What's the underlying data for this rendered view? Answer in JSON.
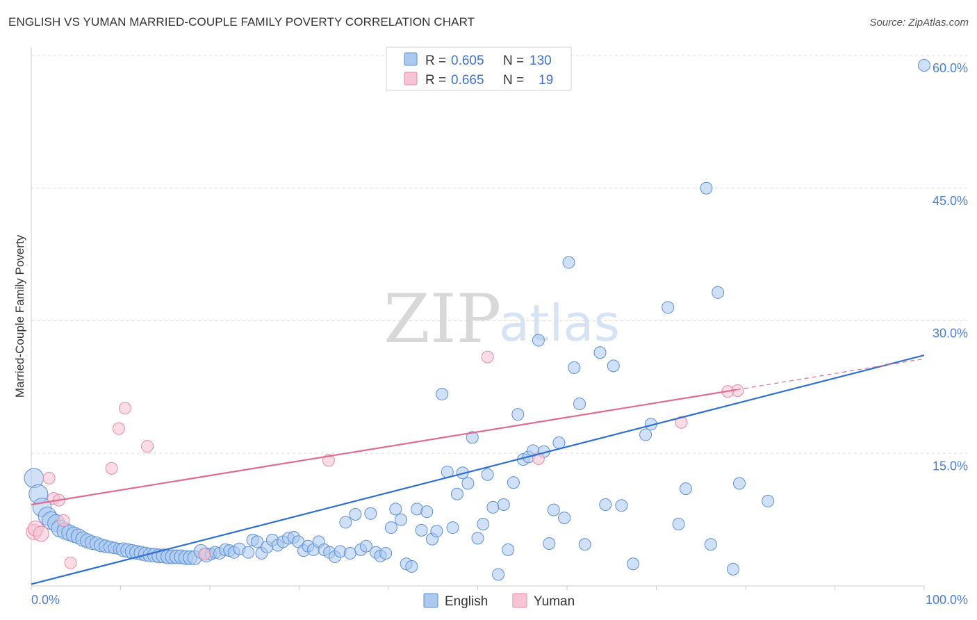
{
  "title": "ENGLISH VS YUMAN MARRIED-COUPLE FAMILY POVERTY CORRELATION CHART",
  "source": "Source: ZipAtlas.com",
  "watermark": {
    "zip": "ZIP",
    "atlas": "atlas"
  },
  "colors": {
    "english_fill": "#aac8f0",
    "english_stroke": "#5b8fd6",
    "english_line": "#2f6fcf",
    "yuman_fill": "#f6c4d4",
    "yuman_stroke": "#e68aa8",
    "yuman_line": "#e06a92"
  },
  "legend": {
    "rows": [
      {
        "r_label": "R =",
        "r_value": "0.605",
        "n_label": "N =",
        "n_value": "130"
      },
      {
        "r_label": "R =",
        "r_value": "0.665",
        "n_label": "N =",
        "n_value": "19"
      }
    ]
  },
  "chart_data": {
    "type": "scatter",
    "title": "ENGLISH VS YUMAN MARRIED-COUPLE FAMILY POVERTY CORRELATION CHART",
    "xlabel": "",
    "ylabel": "Married-Couple Family Poverty",
    "xlim": [
      0,
      100
    ],
    "ylim": [
      0,
      60
    ],
    "x_tick_labels": [
      "0.0%",
      "100.0%"
    ],
    "y_ticks": [
      15,
      30,
      45,
      60
    ],
    "y_tick_labels": [
      "15.0%",
      "30.0%",
      "45.0%",
      "60.0%"
    ],
    "series": [
      {
        "name": "English",
        "R": 0.605,
        "N": 130,
        "trend": {
          "x": [
            0,
            100
          ],
          "y": [
            0.2,
            26.1
          ]
        },
        "points": [
          [
            0.3,
            12.2
          ],
          [
            0.8,
            10.4
          ],
          [
            1.2,
            8.9
          ],
          [
            1.8,
            7.9
          ],
          [
            2.2,
            7.4
          ],
          [
            2.8,
            7.1
          ],
          [
            3.2,
            6.5
          ],
          [
            3.8,
            6.2
          ],
          [
            4.3,
            6.0
          ],
          [
            4.8,
            5.8
          ],
          [
            5.3,
            5.6
          ],
          [
            5.8,
            5.3
          ],
          [
            6.3,
            5.1
          ],
          [
            6.8,
            4.9
          ],
          [
            7.3,
            4.8
          ],
          [
            7.8,
            4.6
          ],
          [
            8.3,
            4.5
          ],
          [
            8.8,
            4.4
          ],
          [
            9.3,
            4.3
          ],
          [
            9.8,
            4.2
          ],
          [
            10.3,
            4.1
          ],
          [
            10.8,
            4.0
          ],
          [
            11.3,
            3.9
          ],
          [
            11.8,
            3.8
          ],
          [
            12.3,
            3.7
          ],
          [
            12.8,
            3.6
          ],
          [
            13.3,
            3.5
          ],
          [
            13.8,
            3.5
          ],
          [
            14.3,
            3.4
          ],
          [
            14.8,
            3.4
          ],
          [
            15.3,
            3.3
          ],
          [
            15.8,
            3.3
          ],
          [
            16.3,
            3.3
          ],
          [
            16.8,
            3.3
          ],
          [
            17.3,
            3.2
          ],
          [
            17.8,
            3.2
          ],
          [
            18.3,
            3.2
          ],
          [
            19.0,
            3.9
          ],
          [
            19.6,
            3.5
          ],
          [
            20.1,
            3.6
          ],
          [
            20.6,
            3.8
          ],
          [
            21.1,
            3.7
          ],
          [
            21.7,
            4.1
          ],
          [
            22.2,
            4.0
          ],
          [
            22.7,
            3.8
          ],
          [
            23.3,
            4.2
          ],
          [
            24.3,
            3.8
          ],
          [
            24.8,
            5.2
          ],
          [
            25.3,
            5.0
          ],
          [
            25.8,
            3.7
          ],
          [
            26.4,
            4.4
          ],
          [
            27.0,
            5.2
          ],
          [
            27.6,
            4.6
          ],
          [
            28.2,
            5.0
          ],
          [
            28.8,
            5.4
          ],
          [
            29.4,
            5.5
          ],
          [
            29.9,
            5.0
          ],
          [
            30.5,
            4.0
          ],
          [
            31.0,
            4.5
          ],
          [
            31.6,
            4.1
          ],
          [
            32.2,
            5.0
          ],
          [
            32.8,
            4.1
          ],
          [
            33.4,
            3.8
          ],
          [
            34.0,
            3.3
          ],
          [
            34.6,
            3.9
          ],
          [
            35.2,
            7.2
          ],
          [
            35.7,
            3.7
          ],
          [
            36.3,
            8.1
          ],
          [
            36.9,
            4.1
          ],
          [
            37.5,
            4.5
          ],
          [
            38.0,
            8.2
          ],
          [
            38.6,
            3.8
          ],
          [
            39.1,
            3.4
          ],
          [
            39.7,
            3.7
          ],
          [
            40.3,
            6.6
          ],
          [
            40.8,
            8.7
          ],
          [
            41.4,
            7.5
          ],
          [
            42.0,
            2.5
          ],
          [
            42.6,
            2.2
          ],
          [
            43.2,
            8.7
          ],
          [
            43.7,
            6.3
          ],
          [
            44.3,
            8.4
          ],
          [
            44.9,
            5.3
          ],
          [
            45.4,
            6.2
          ],
          [
            46.0,
            21.7
          ],
          [
            46.6,
            12.9
          ],
          [
            47.2,
            6.6
          ],
          [
            47.7,
            10.4
          ],
          [
            48.3,
            12.8
          ],
          [
            48.9,
            11.6
          ],
          [
            49.4,
            16.8
          ],
          [
            50.0,
            5.4
          ],
          [
            50.6,
            7.0
          ],
          [
            51.1,
            12.6
          ],
          [
            51.7,
            8.9
          ],
          [
            52.3,
            1.3
          ],
          [
            52.9,
            9.2
          ],
          [
            53.4,
            4.1
          ],
          [
            54.0,
            11.7
          ],
          [
            54.5,
            19.4
          ],
          [
            55.1,
            14.3
          ],
          [
            55.7,
            14.6
          ],
          [
            56.2,
            15.3
          ],
          [
            56.8,
            27.8
          ],
          [
            57.4,
            15.2
          ],
          [
            58.0,
            4.8
          ],
          [
            58.5,
            8.6
          ],
          [
            59.1,
            16.2
          ],
          [
            59.7,
            7.7
          ],
          [
            60.2,
            36.6
          ],
          [
            60.8,
            24.7
          ],
          [
            61.4,
            20.6
          ],
          [
            62.0,
            4.7
          ],
          [
            63.7,
            26.4
          ],
          [
            64.3,
            9.2
          ],
          [
            65.2,
            24.9
          ],
          [
            66.1,
            9.1
          ],
          [
            67.4,
            2.5
          ],
          [
            68.8,
            17.1
          ],
          [
            69.4,
            18.3
          ],
          [
            71.3,
            31.5
          ],
          [
            72.5,
            7.0
          ],
          [
            73.3,
            11.0
          ],
          [
            76.1,
            4.7
          ],
          [
            76.9,
            33.2
          ],
          [
            78.6,
            1.9
          ],
          [
            79.3,
            11.6
          ],
          [
            82.5,
            9.6
          ],
          [
            75.6,
            45.0
          ],
          [
            100.0,
            58.9
          ]
        ]
      },
      {
        "name": "Yuman",
        "R": 0.665,
        "N": 19,
        "trend": {
          "x": [
            0,
            79
          ],
          "y": [
            9.2,
            22.2
          ]
        },
        "trend_dashed_to": {
          "x": 100,
          "y": 25.7
        },
        "points": [
          [
            0.3,
            6.1
          ],
          [
            0.5,
            6.5
          ],
          [
            1.1,
            5.9
          ],
          [
            2.0,
            12.2
          ],
          [
            2.5,
            9.9
          ],
          [
            3.1,
            9.7
          ],
          [
            3.6,
            7.4
          ],
          [
            4.4,
            2.6
          ],
          [
            9.0,
            13.3
          ],
          [
            9.8,
            17.8
          ],
          [
            10.5,
            20.1
          ],
          [
            13.0,
            15.8
          ],
          [
            19.4,
            3.6
          ],
          [
            33.3,
            14.2
          ],
          [
            51.1,
            25.9
          ],
          [
            56.8,
            14.4
          ],
          [
            72.8,
            18.5
          ],
          [
            79.1,
            22.1
          ],
          [
            78.0,
            22.0
          ]
        ]
      }
    ],
    "legend_entries": [
      "English",
      "Yuman"
    ]
  }
}
